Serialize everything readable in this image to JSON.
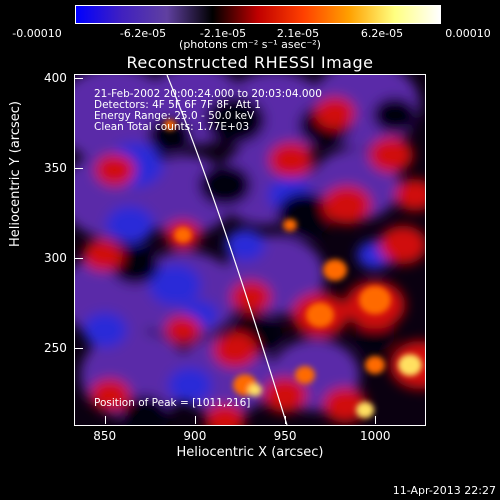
{
  "colorbar": {
    "tick_labels": [
      "-0.00010",
      "-6.2e-05",
      "-2.1e-05",
      "2.1e-05",
      "6.2e-05",
      "0.00010"
    ],
    "units": "(photons cm⁻² s⁻¹ asec⁻²)",
    "stops": [
      "#0000ff",
      "#4020c0",
      "#6040a0",
      "#000000",
      "#c00000",
      "#ff4000",
      "#ffa000",
      "#ffff80",
      "#ffffff"
    ]
  },
  "plot": {
    "title": "Reconstructed RHESSI Image",
    "annotations": [
      "21-Feb-2002 20:00:24.000 to 20:03:04.000",
      "Detectors: 4F 5F 6F 7F 8F, Att 1",
      "Energy Range: 25.0 - 50.0 keV",
      "Clean     Total counts: 1.77E+03"
    ],
    "peak_label": "Position of Peak = [1011,216]",
    "x_axis": {
      "label": "Heliocentric X (arcsec)",
      "range": [
        833,
        1027
      ],
      "ticks": [
        850,
        900,
        950,
        1000
      ]
    },
    "y_axis": {
      "label": "Heliocentric Y (arcsec)",
      "range": [
        208,
        402
      ],
      "ticks": [
        250,
        300,
        350,
        400
      ]
    }
  },
  "timestamp": "11-Apr-2013 22:27"
}
